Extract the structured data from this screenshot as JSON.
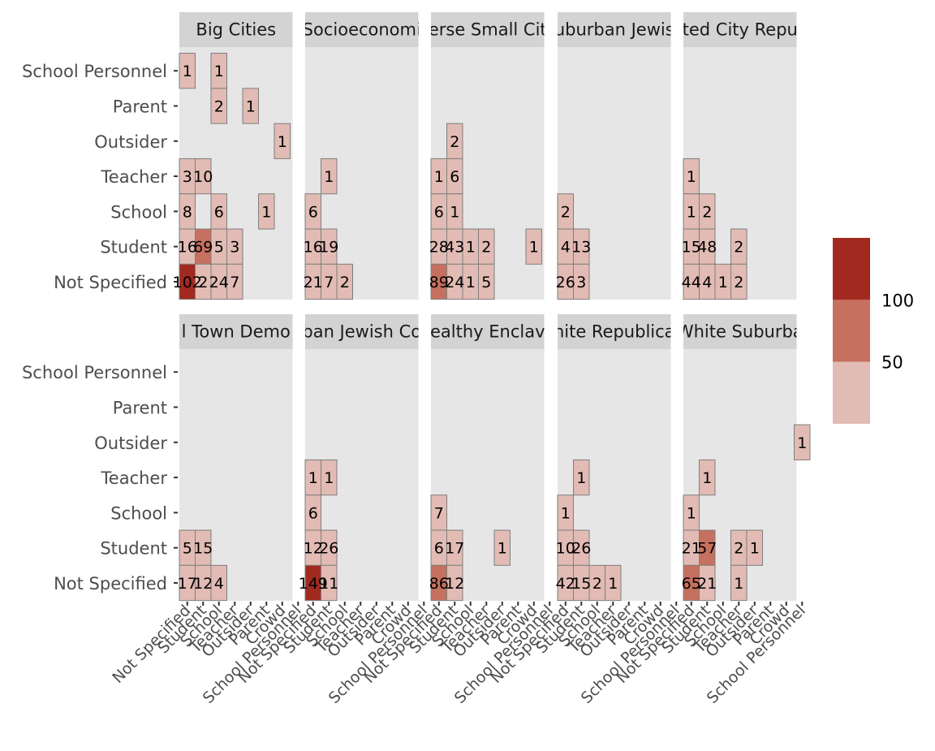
{
  "chart_data": {
    "type": "heatmap",
    "x_categories": [
      "Not Specified",
      "Student",
      "School",
      "Teacher",
      "Outsider",
      "Parent",
      "Crowd",
      "School Personnel"
    ],
    "y_categories": [
      "Not Specified",
      "Student",
      "School",
      "Teacher",
      "Outsider",
      "Parent",
      "School Personnel"
    ],
    "panels": [
      {
        "strip": "Big Cities",
        "cells": [
          {
            "x": "Not Specified",
            "y": "School Personnel",
            "value": 1
          },
          {
            "x": "School",
            "y": "School Personnel",
            "value": 1
          },
          {
            "x": "School",
            "y": "Parent",
            "value": 2
          },
          {
            "x": "Outsider",
            "y": "Parent",
            "value": 1
          },
          {
            "x": "Crowd",
            "y": "Outsider",
            "value": 1
          },
          {
            "x": "Not Specified",
            "y": "Teacher",
            "value": 3
          },
          {
            "x": "Student",
            "y": "Teacher",
            "value": 10
          },
          {
            "x": "Not Specified",
            "y": "School",
            "value": 8
          },
          {
            "x": "School",
            "y": "School",
            "value": 6
          },
          {
            "x": "Parent",
            "y": "School",
            "value": 1
          },
          {
            "x": "Not Specified",
            "y": "Student",
            "value": 16
          },
          {
            "x": "Student",
            "y": "Student",
            "value": 69
          },
          {
            "x": "School",
            "y": "Student",
            "value": 5
          },
          {
            "x": "Teacher",
            "y": "Student",
            "value": 3
          },
          {
            "x": "Not Specified",
            "y": "Not Specified",
            "value": 102
          },
          {
            "x": "Student",
            "y": "Not Specified",
            "value": 2
          },
          {
            "x": "School",
            "y": "Not Specified",
            "value": 24
          },
          {
            "x": "Teacher",
            "y": "Not Specified",
            "value": 7
          }
        ]
      },
      {
        "strip": "Socioeconomi",
        "cells": [
          {
            "x": "Student",
            "y": "Teacher",
            "value": 1
          },
          {
            "x": "Not Specified",
            "y": "School",
            "value": 6
          },
          {
            "x": "Not Specified",
            "y": "Student",
            "value": 16
          },
          {
            "x": "Student",
            "y": "Student",
            "value": 19
          },
          {
            "x": "Not Specified",
            "y": "Not Specified",
            "value": 21
          },
          {
            "x": "Student",
            "y": "Not Specified",
            "value": 7
          },
          {
            "x": "School",
            "y": "Not Specified",
            "value": 2
          }
        ]
      },
      {
        "strip": "erse Small Cit",
        "cells": [
          {
            "x": "Student",
            "y": "Outsider",
            "value": 2
          },
          {
            "x": "Not Specified",
            "y": "Teacher",
            "value": 1
          },
          {
            "x": "Student",
            "y": "Teacher",
            "value": 6
          },
          {
            "x": "Not Specified",
            "y": "School",
            "value": 6
          },
          {
            "x": "Student",
            "y": "School",
            "value": 1
          },
          {
            "x": "Not Specified",
            "y": "Student",
            "value": 28
          },
          {
            "x": "Student",
            "y": "Student",
            "value": 43
          },
          {
            "x": "School",
            "y": "Student",
            "value": 1
          },
          {
            "x": "Teacher",
            "y": "Student",
            "value": 2
          },
          {
            "x": "Crowd",
            "y": "Student",
            "value": 1
          },
          {
            "x": "Not Specified",
            "y": "Not Specified",
            "value": 89
          },
          {
            "x": "Student",
            "y": "Not Specified",
            "value": 24
          },
          {
            "x": "School",
            "y": "Not Specified",
            "value": 1
          },
          {
            "x": "Teacher",
            "y": "Not Specified",
            "value": 5
          }
        ]
      },
      {
        "strip": "uburban Jewis",
        "cells": [
          {
            "x": "Not Specified",
            "y": "School",
            "value": 2
          },
          {
            "x": "Not Specified",
            "y": "Student",
            "value": 4
          },
          {
            "x": "Student",
            "y": "Student",
            "value": 13
          },
          {
            "x": "Not Specified",
            "y": "Not Specified",
            "value": 26
          },
          {
            "x": "Student",
            "y": "Not Specified",
            "value": 3
          }
        ]
      },
      {
        "strip": "ted City Repu",
        "cells": [
          {
            "x": "Not Specified",
            "y": "Teacher",
            "value": 1
          },
          {
            "x": "Not Specified",
            "y": "School",
            "value": 1
          },
          {
            "x": "Student",
            "y": "School",
            "value": 2
          },
          {
            "x": "Not Specified",
            "y": "Student",
            "value": 15
          },
          {
            "x": "Student",
            "y": "Student",
            "value": 48
          },
          {
            "x": "Teacher",
            "y": "Student",
            "value": 2
          },
          {
            "x": "Not Specified",
            "y": "Not Specified",
            "value": 44
          },
          {
            "x": "Student",
            "y": "Not Specified",
            "value": 4
          },
          {
            "x": "School",
            "y": "Not Specified",
            "value": 1
          },
          {
            "x": "Teacher",
            "y": "Not Specified",
            "value": 2
          }
        ]
      },
      {
        "strip": "l Town Demo",
        "cells": [
          {
            "x": "Not Specified",
            "y": "Student",
            "value": 5
          },
          {
            "x": "Student",
            "y": "Student",
            "value": 15
          },
          {
            "x": "Not Specified",
            "y": "Not Specified",
            "value": 17
          },
          {
            "x": "Student",
            "y": "Not Specified",
            "value": 12
          },
          {
            "x": "School",
            "y": "Not Specified",
            "value": 4
          }
        ]
      },
      {
        "strip": "ban Jewish Co",
        "cells": [
          {
            "x": "Not Specified",
            "y": "Teacher",
            "value": 1
          },
          {
            "x": "Student",
            "y": "Teacher",
            "value": 1
          },
          {
            "x": "Not Specified",
            "y": "School",
            "value": 6
          },
          {
            "x": "Not Specified",
            "y": "Student",
            "value": 12
          },
          {
            "x": "Student",
            "y": "Student",
            "value": 26
          },
          {
            "x": "Not Specified",
            "y": "Not Specified",
            "value": 149
          },
          {
            "x": "Student",
            "y": "Not Specified",
            "value": 11
          }
        ]
      },
      {
        "strip": "ealthy Enclav",
        "cells": [
          {
            "x": "Not Specified",
            "y": "School",
            "value": 7
          },
          {
            "x": "Not Specified",
            "y": "Student",
            "value": 6
          },
          {
            "x": "Student",
            "y": "Student",
            "value": 17
          },
          {
            "x": "Outsider",
            "y": "Student",
            "value": 1
          },
          {
            "x": "Not Specified",
            "y": "Not Specified",
            "value": 86
          },
          {
            "x": "Student",
            "y": "Not Specified",
            "value": 12
          }
        ]
      },
      {
        "strip": "hite Republica",
        "cells": [
          {
            "x": "Student",
            "y": "Teacher",
            "value": 1
          },
          {
            "x": "Not Specified",
            "y": "School",
            "value": 1
          },
          {
            "x": "Not Specified",
            "y": "Student",
            "value": 10
          },
          {
            "x": "Student",
            "y": "Student",
            "value": 26
          },
          {
            "x": "Not Specified",
            "y": "Not Specified",
            "value": 42
          },
          {
            "x": "Student",
            "y": "Not Specified",
            "value": 15
          },
          {
            "x": "School",
            "y": "Not Specified",
            "value": 2
          },
          {
            "x": "Teacher",
            "y": "Not Specified",
            "value": 1
          }
        ]
      },
      {
        "strip": "White Suburba",
        "cells": [
          {
            "x": "School Personnel",
            "y": "Outsider",
            "value": 1
          },
          {
            "x": "Student",
            "y": "Teacher",
            "value": 1
          },
          {
            "x": "Not Specified",
            "y": "School",
            "value": 1
          },
          {
            "x": "Not Specified",
            "y": "Student",
            "value": 21
          },
          {
            "x": "Student",
            "y": "Student",
            "value": 57
          },
          {
            "x": "Teacher",
            "y": "Student",
            "value": 2
          },
          {
            "x": "Outsider",
            "y": "Student",
            "value": 1
          },
          {
            "x": "Not Specified",
            "y": "Not Specified",
            "value": 65
          },
          {
            "x": "Student",
            "y": "Not Specified",
            "value": 21
          },
          {
            "x": "Teacher",
            "y": "Not Specified",
            "value": 1
          }
        ]
      }
    ],
    "colorscale": {
      "breaks": [
        0,
        50,
        100,
        150
      ],
      "colors": [
        "#e1bbb4",
        "#c6705f",
        "#a2291f"
      ],
      "legend_labels": [
        "50",
        "100"
      ],
      "legend_position": "right"
    },
    "colors": {
      "panel_background": "#e6e6e6",
      "strip_background": "#d3d3d3",
      "cell_border": "#7f7f7f",
      "axis_text": "#4d4d4d",
      "tick": "#333333"
    },
    "title": "",
    "xlabel": "",
    "ylabel": ""
  }
}
